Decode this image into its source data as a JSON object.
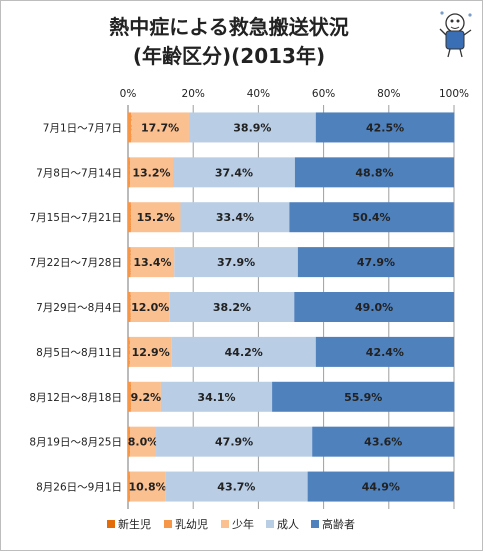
{
  "chart_data": {
    "type": "bar",
    "orientation": "horizontal",
    "stacked": true,
    "percent_stacked": true,
    "title_line1": "熱中症による救急搬送状況",
    "title_line2": "(年齢区分)(2013年)",
    "xlim": [
      0,
      100
    ],
    "x_ticks": [
      "0%",
      "20%",
      "40%",
      "60%",
      "80%",
      "100%"
    ],
    "grid": true,
    "legend_position": "bottom",
    "categories": [
      "7月1日～7月7日",
      "7月8日～7月14日",
      "7月15日～7月21日",
      "7月22日～7月28日",
      "7月29日～8月4日",
      "8月5日～8月11日",
      "8月12日～8月18日",
      "8月19日～8月25日",
      "8月26日～9月1日"
    ],
    "series": [
      {
        "name": "新生児",
        "color": "#e36c09",
        "values": [
          0.0,
          0.0,
          0.0,
          0.0,
          0.0,
          0.0,
          0.0,
          0.0,
          0.0
        ],
        "labels": [
          "0.0%",
          "0.0%",
          "0.0%",
          "0.0%",
          "0.0%",
          "0.0%",
          "0.0%",
          "0.0%",
          "0.0%"
        ]
      },
      {
        "name": "乳幼児",
        "color": "#f79646",
        "values": [
          1.0,
          0.6,
          0.9,
          0.8,
          0.8,
          0.5,
          0.9,
          0.6,
          0.6
        ],
        "labels": [
          "1.0%",
          "0.6%",
          "0.9%",
          "0.8%",
          "0.8%",
          "0.5%",
          "0.9%",
          "0.6%",
          "0.6%"
        ]
      },
      {
        "name": "少年",
        "color": "#fac090",
        "values": [
          17.7,
          13.2,
          15.2,
          13.4,
          12.0,
          12.9,
          9.2,
          8.0,
          10.8
        ],
        "labels": [
          "17.7%",
          "13.2%",
          "15.2%",
          "13.4%",
          "12.0%",
          "12.9%",
          "9.2%",
          "8.0%",
          "10.8%"
        ]
      },
      {
        "name": "成人",
        "color": "#b9cde5",
        "values": [
          38.9,
          37.4,
          33.4,
          37.9,
          38.2,
          44.2,
          34.1,
          47.9,
          43.7
        ],
        "labels": [
          "38.9%",
          "37.4%",
          "33.4%",
          "37.9%",
          "38.2%",
          "44.2%",
          "34.1%",
          "47.9%",
          "43.7%"
        ]
      },
      {
        "name": "高齢者",
        "color": "#4f81bd",
        "values": [
          42.5,
          48.8,
          50.4,
          47.9,
          49.0,
          42.4,
          55.9,
          43.6,
          44.9
        ],
        "labels": [
          "42.5%",
          "48.8%",
          "50.4%",
          "47.9%",
          "49.0%",
          "42.4%",
          "55.9%",
          "43.6%",
          "44.9%"
        ]
      }
    ]
  }
}
